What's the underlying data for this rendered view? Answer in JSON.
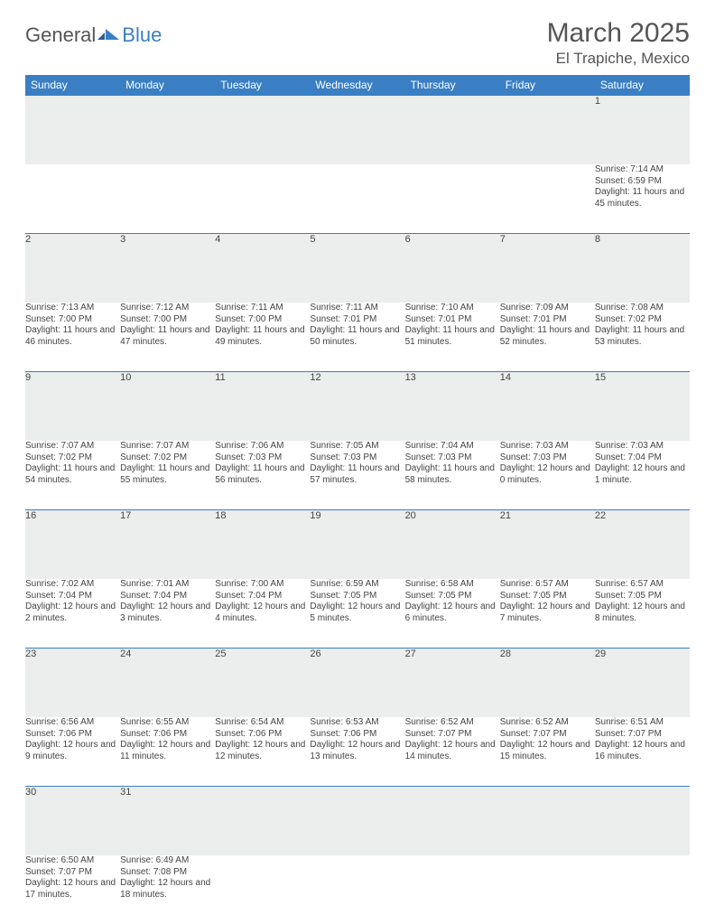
{
  "brand": {
    "part1": "General",
    "part2": "Blue"
  },
  "title": "March 2025",
  "location": "El Trapiche, Mexico",
  "colors": {
    "header_bg": "#3a7fc4",
    "header_text": "#ffffff",
    "daynum_bg": "#eceded",
    "rule": "#3a7fc4",
    "text": "#444444",
    "page_bg": "#ffffff"
  },
  "days_of_week": [
    "Sunday",
    "Monday",
    "Tuesday",
    "Wednesday",
    "Thursday",
    "Friday",
    "Saturday"
  ],
  "weeks": [
    [
      null,
      null,
      null,
      null,
      null,
      null,
      {
        "n": "1",
        "sr": "Sunrise: 7:14 AM",
        "ss": "Sunset: 6:59 PM",
        "dl": "Daylight: 11 hours and 45 minutes."
      }
    ],
    [
      {
        "n": "2",
        "sr": "Sunrise: 7:13 AM",
        "ss": "Sunset: 7:00 PM",
        "dl": "Daylight: 11 hours and 46 minutes."
      },
      {
        "n": "3",
        "sr": "Sunrise: 7:12 AM",
        "ss": "Sunset: 7:00 PM",
        "dl": "Daylight: 11 hours and 47 minutes."
      },
      {
        "n": "4",
        "sr": "Sunrise: 7:11 AM",
        "ss": "Sunset: 7:00 PM",
        "dl": "Daylight: 11 hours and 49 minutes."
      },
      {
        "n": "5",
        "sr": "Sunrise: 7:11 AM",
        "ss": "Sunset: 7:01 PM",
        "dl": "Daylight: 11 hours and 50 minutes."
      },
      {
        "n": "6",
        "sr": "Sunrise: 7:10 AM",
        "ss": "Sunset: 7:01 PM",
        "dl": "Daylight: 11 hours and 51 minutes."
      },
      {
        "n": "7",
        "sr": "Sunrise: 7:09 AM",
        "ss": "Sunset: 7:01 PM",
        "dl": "Daylight: 11 hours and 52 minutes."
      },
      {
        "n": "8",
        "sr": "Sunrise: 7:08 AM",
        "ss": "Sunset: 7:02 PM",
        "dl": "Daylight: 11 hours and 53 minutes."
      }
    ],
    [
      {
        "n": "9",
        "sr": "Sunrise: 7:07 AM",
        "ss": "Sunset: 7:02 PM",
        "dl": "Daylight: 11 hours and 54 minutes."
      },
      {
        "n": "10",
        "sr": "Sunrise: 7:07 AM",
        "ss": "Sunset: 7:02 PM",
        "dl": "Daylight: 11 hours and 55 minutes."
      },
      {
        "n": "11",
        "sr": "Sunrise: 7:06 AM",
        "ss": "Sunset: 7:03 PM",
        "dl": "Daylight: 11 hours and 56 minutes."
      },
      {
        "n": "12",
        "sr": "Sunrise: 7:05 AM",
        "ss": "Sunset: 7:03 PM",
        "dl": "Daylight: 11 hours and 57 minutes."
      },
      {
        "n": "13",
        "sr": "Sunrise: 7:04 AM",
        "ss": "Sunset: 7:03 PM",
        "dl": "Daylight: 11 hours and 58 minutes."
      },
      {
        "n": "14",
        "sr": "Sunrise: 7:03 AM",
        "ss": "Sunset: 7:03 PM",
        "dl": "Daylight: 12 hours and 0 minutes."
      },
      {
        "n": "15",
        "sr": "Sunrise: 7:03 AM",
        "ss": "Sunset: 7:04 PM",
        "dl": "Daylight: 12 hours and 1 minute."
      }
    ],
    [
      {
        "n": "16",
        "sr": "Sunrise: 7:02 AM",
        "ss": "Sunset: 7:04 PM",
        "dl": "Daylight: 12 hours and 2 minutes."
      },
      {
        "n": "17",
        "sr": "Sunrise: 7:01 AM",
        "ss": "Sunset: 7:04 PM",
        "dl": "Daylight: 12 hours and 3 minutes."
      },
      {
        "n": "18",
        "sr": "Sunrise: 7:00 AM",
        "ss": "Sunset: 7:04 PM",
        "dl": "Daylight: 12 hours and 4 minutes."
      },
      {
        "n": "19",
        "sr": "Sunrise: 6:59 AM",
        "ss": "Sunset: 7:05 PM",
        "dl": "Daylight: 12 hours and 5 minutes."
      },
      {
        "n": "20",
        "sr": "Sunrise: 6:58 AM",
        "ss": "Sunset: 7:05 PM",
        "dl": "Daylight: 12 hours and 6 minutes."
      },
      {
        "n": "21",
        "sr": "Sunrise: 6:57 AM",
        "ss": "Sunset: 7:05 PM",
        "dl": "Daylight: 12 hours and 7 minutes."
      },
      {
        "n": "22",
        "sr": "Sunrise: 6:57 AM",
        "ss": "Sunset: 7:05 PM",
        "dl": "Daylight: 12 hours and 8 minutes."
      }
    ],
    [
      {
        "n": "23",
        "sr": "Sunrise: 6:56 AM",
        "ss": "Sunset: 7:06 PM",
        "dl": "Daylight: 12 hours and 9 minutes."
      },
      {
        "n": "24",
        "sr": "Sunrise: 6:55 AM",
        "ss": "Sunset: 7:06 PM",
        "dl": "Daylight: 12 hours and 11 minutes."
      },
      {
        "n": "25",
        "sr": "Sunrise: 6:54 AM",
        "ss": "Sunset: 7:06 PM",
        "dl": "Daylight: 12 hours and 12 minutes."
      },
      {
        "n": "26",
        "sr": "Sunrise: 6:53 AM",
        "ss": "Sunset: 7:06 PM",
        "dl": "Daylight: 12 hours and 13 minutes."
      },
      {
        "n": "27",
        "sr": "Sunrise: 6:52 AM",
        "ss": "Sunset: 7:07 PM",
        "dl": "Daylight: 12 hours and 14 minutes."
      },
      {
        "n": "28",
        "sr": "Sunrise: 6:52 AM",
        "ss": "Sunset: 7:07 PM",
        "dl": "Daylight: 12 hours and 15 minutes."
      },
      {
        "n": "29",
        "sr": "Sunrise: 6:51 AM",
        "ss": "Sunset: 7:07 PM",
        "dl": "Daylight: 12 hours and 16 minutes."
      }
    ],
    [
      {
        "n": "30",
        "sr": "Sunrise: 6:50 AM",
        "ss": "Sunset: 7:07 PM",
        "dl": "Daylight: 12 hours and 17 minutes."
      },
      {
        "n": "31",
        "sr": "Sunrise: 6:49 AM",
        "ss": "Sunset: 7:08 PM",
        "dl": "Daylight: 12 hours and 18 minutes."
      },
      null,
      null,
      null,
      null,
      null
    ]
  ]
}
